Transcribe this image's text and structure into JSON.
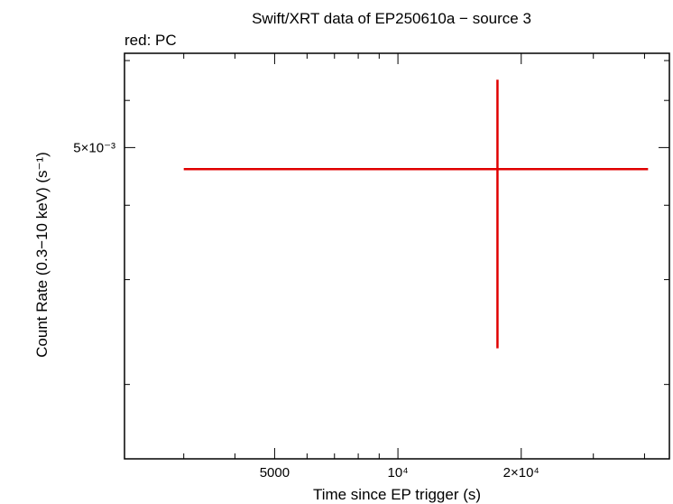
{
  "chart_data": {
    "type": "scatter",
    "title": "Swift/XRT data of EP250610a − source 3",
    "subtitle": "red: PC",
    "xlabel": "Time since EP trigger (s)",
    "ylabel": "Count Rate (0.3−10 keV) (s⁻¹)",
    "x_scale": "log",
    "y_scale": "log",
    "xlim": [
      2150,
      46000
    ],
    "ylim": [
      0.0015,
      0.0072
    ],
    "x_ticks": [
      {
        "value": 5000,
        "label": "5000"
      },
      {
        "value": 10000,
        "label": "10⁴"
      },
      {
        "value": 20000,
        "label": "2×10⁴"
      }
    ],
    "y_ticks": [
      {
        "value": 0.005,
        "label": "5×10⁻³"
      }
    ],
    "series": [
      {
        "name": "PC",
        "color": "#e00000",
        "points": [
          {
            "x": 17500,
            "y": 0.0046,
            "x_lo": 3000,
            "x_hi": 40800,
            "y_lo": 0.0023,
            "y_hi": 0.0065
          }
        ]
      }
    ],
    "grid": false
  }
}
